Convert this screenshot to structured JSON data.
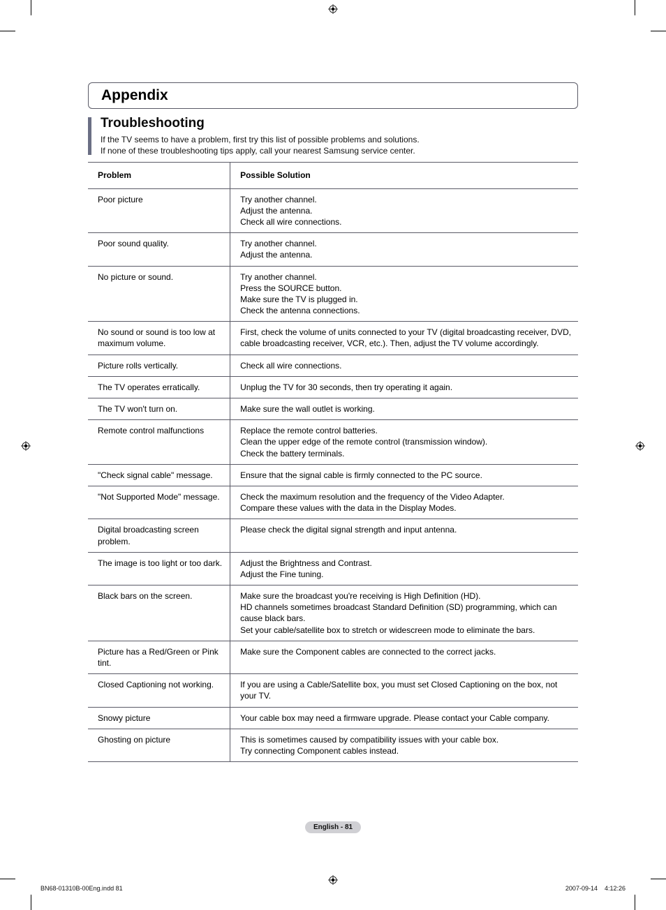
{
  "section": "Appendix",
  "subsection": "Troubleshooting",
  "intro": [
    "If the TV seems to have a problem, first try this list of possible problems and solutions.",
    "If none of these troubleshooting tips apply, call your nearest Samsung service center."
  ],
  "table": {
    "columns": [
      "Problem",
      "Possible Solution"
    ],
    "col_widths": [
      "29%",
      "71%"
    ],
    "rows": [
      [
        "Poor picture",
        "Try another channel.\nAdjust the antenna.\nCheck all wire connections."
      ],
      [
        "Poor sound quality.",
        "Try another channel.\nAdjust the antenna."
      ],
      [
        "No picture or sound.",
        "Try another channel.\nPress the SOURCE button.\nMake sure the TV is plugged in.\nCheck the antenna connections."
      ],
      [
        "No sound or sound is too low at maximum volume.",
        "First, check the volume of units connected to your TV (digital broadcasting receiver, DVD, cable broadcasting receiver, VCR, etc.). Then, adjust the TV volume accordingly."
      ],
      [
        "Picture rolls vertically.",
        "Check all wire connections."
      ],
      [
        "The TV operates erratically.",
        "Unplug the TV for 30 seconds, then try operating it again."
      ],
      [
        "The TV won't turn on.",
        "Make sure the wall outlet is working."
      ],
      [
        "Remote control malfunctions",
        "Replace the remote control batteries.\nClean the upper edge of the remote control (transmission window).\nCheck the battery terminals."
      ],
      [
        "\"Check signal cable\" message.",
        "Ensure that the signal cable is firmly connected to the PC source."
      ],
      [
        "\"Not Supported Mode\" message.",
        "Check the maximum resolution and the frequency of the Video Adapter.\nCompare these values with the data in the Display Modes."
      ],
      [
        "Digital broadcasting screen problem.",
        "Please check the digital signal strength and input antenna."
      ],
      [
        "The image is too light or too dark.",
        "Adjust the Brightness and Contrast.\nAdjust the Fine tuning."
      ],
      [
        "Black bars on the screen.",
        "Make sure the broadcast you're receiving is High Definition (HD).\nHD channels sometimes broadcast Standard Definition (SD) programming, which can cause black bars.\nSet your cable/satellite box to stretch or widescreen mode to eliminate the bars."
      ],
      [
        "Picture has a Red/Green or Pink tint.",
        "Make sure the Component cables are connected to the correct jacks."
      ],
      [
        "Closed Captioning not working.",
        "If you are using a Cable/Satellite box, you must set Closed Captioning on the box, not your TV."
      ],
      [
        "Snowy picture",
        "Your cable box may need a firmware upgrade. Please contact your Cable company.\n "
      ],
      [
        "Ghosting on picture",
        "This is sometimes caused by compatibility issues with your cable box.\nTry connecting Component cables instead."
      ]
    ]
  },
  "page_label": "English - 81",
  "footer": {
    "left": "BN68-01310B-00Eng.indd   81",
    "right": "2007-09-14      4:12:26"
  },
  "style": {
    "border_color": "#5a5a66",
    "bar_color": "#6b6f84",
    "badge_bg": "#d0d0d4",
    "font_body": 12,
    "font_section": 21,
    "font_subsection": 19
  }
}
